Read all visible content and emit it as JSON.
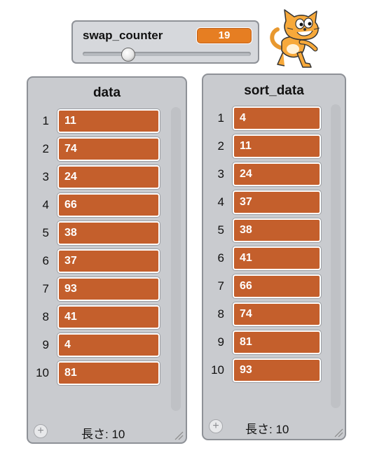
{
  "variable": {
    "name": "swap_counter",
    "value": "19",
    "slider_fraction": 0.25
  },
  "lists": [
    {
      "title": "data",
      "items": [
        {
          "index": "1",
          "value": "11"
        },
        {
          "index": "2",
          "value": "74"
        },
        {
          "index": "3",
          "value": "24"
        },
        {
          "index": "4",
          "value": "66"
        },
        {
          "index": "5",
          "value": "38"
        },
        {
          "index": "6",
          "value": "37"
        },
        {
          "index": "7",
          "value": "93"
        },
        {
          "index": "8",
          "value": "41"
        },
        {
          "index": "9",
          "value": "4"
        },
        {
          "index": "10",
          "value": "81"
        }
      ],
      "add_label": "+",
      "length_label": "長さ: 10"
    },
    {
      "title": "sort_data",
      "items": [
        {
          "index": "1",
          "value": "4"
        },
        {
          "index": "2",
          "value": "11"
        },
        {
          "index": "3",
          "value": "24"
        },
        {
          "index": "4",
          "value": "37"
        },
        {
          "index": "5",
          "value": "38"
        },
        {
          "index": "6",
          "value": "41"
        },
        {
          "index": "7",
          "value": "66"
        },
        {
          "index": "8",
          "value": "74"
        },
        {
          "index": "9",
          "value": "81"
        },
        {
          "index": "10",
          "value": "93"
        }
      ],
      "add_label": "+",
      "length_label": "長さ: 10"
    }
  ],
  "colors": {
    "variable_value_bg": "#e67e22",
    "list_cell_bg": "#c45f2c",
    "panel_bg": "#c9cbcf"
  },
  "sprite": {
    "icon": "scratch-cat-icon"
  }
}
